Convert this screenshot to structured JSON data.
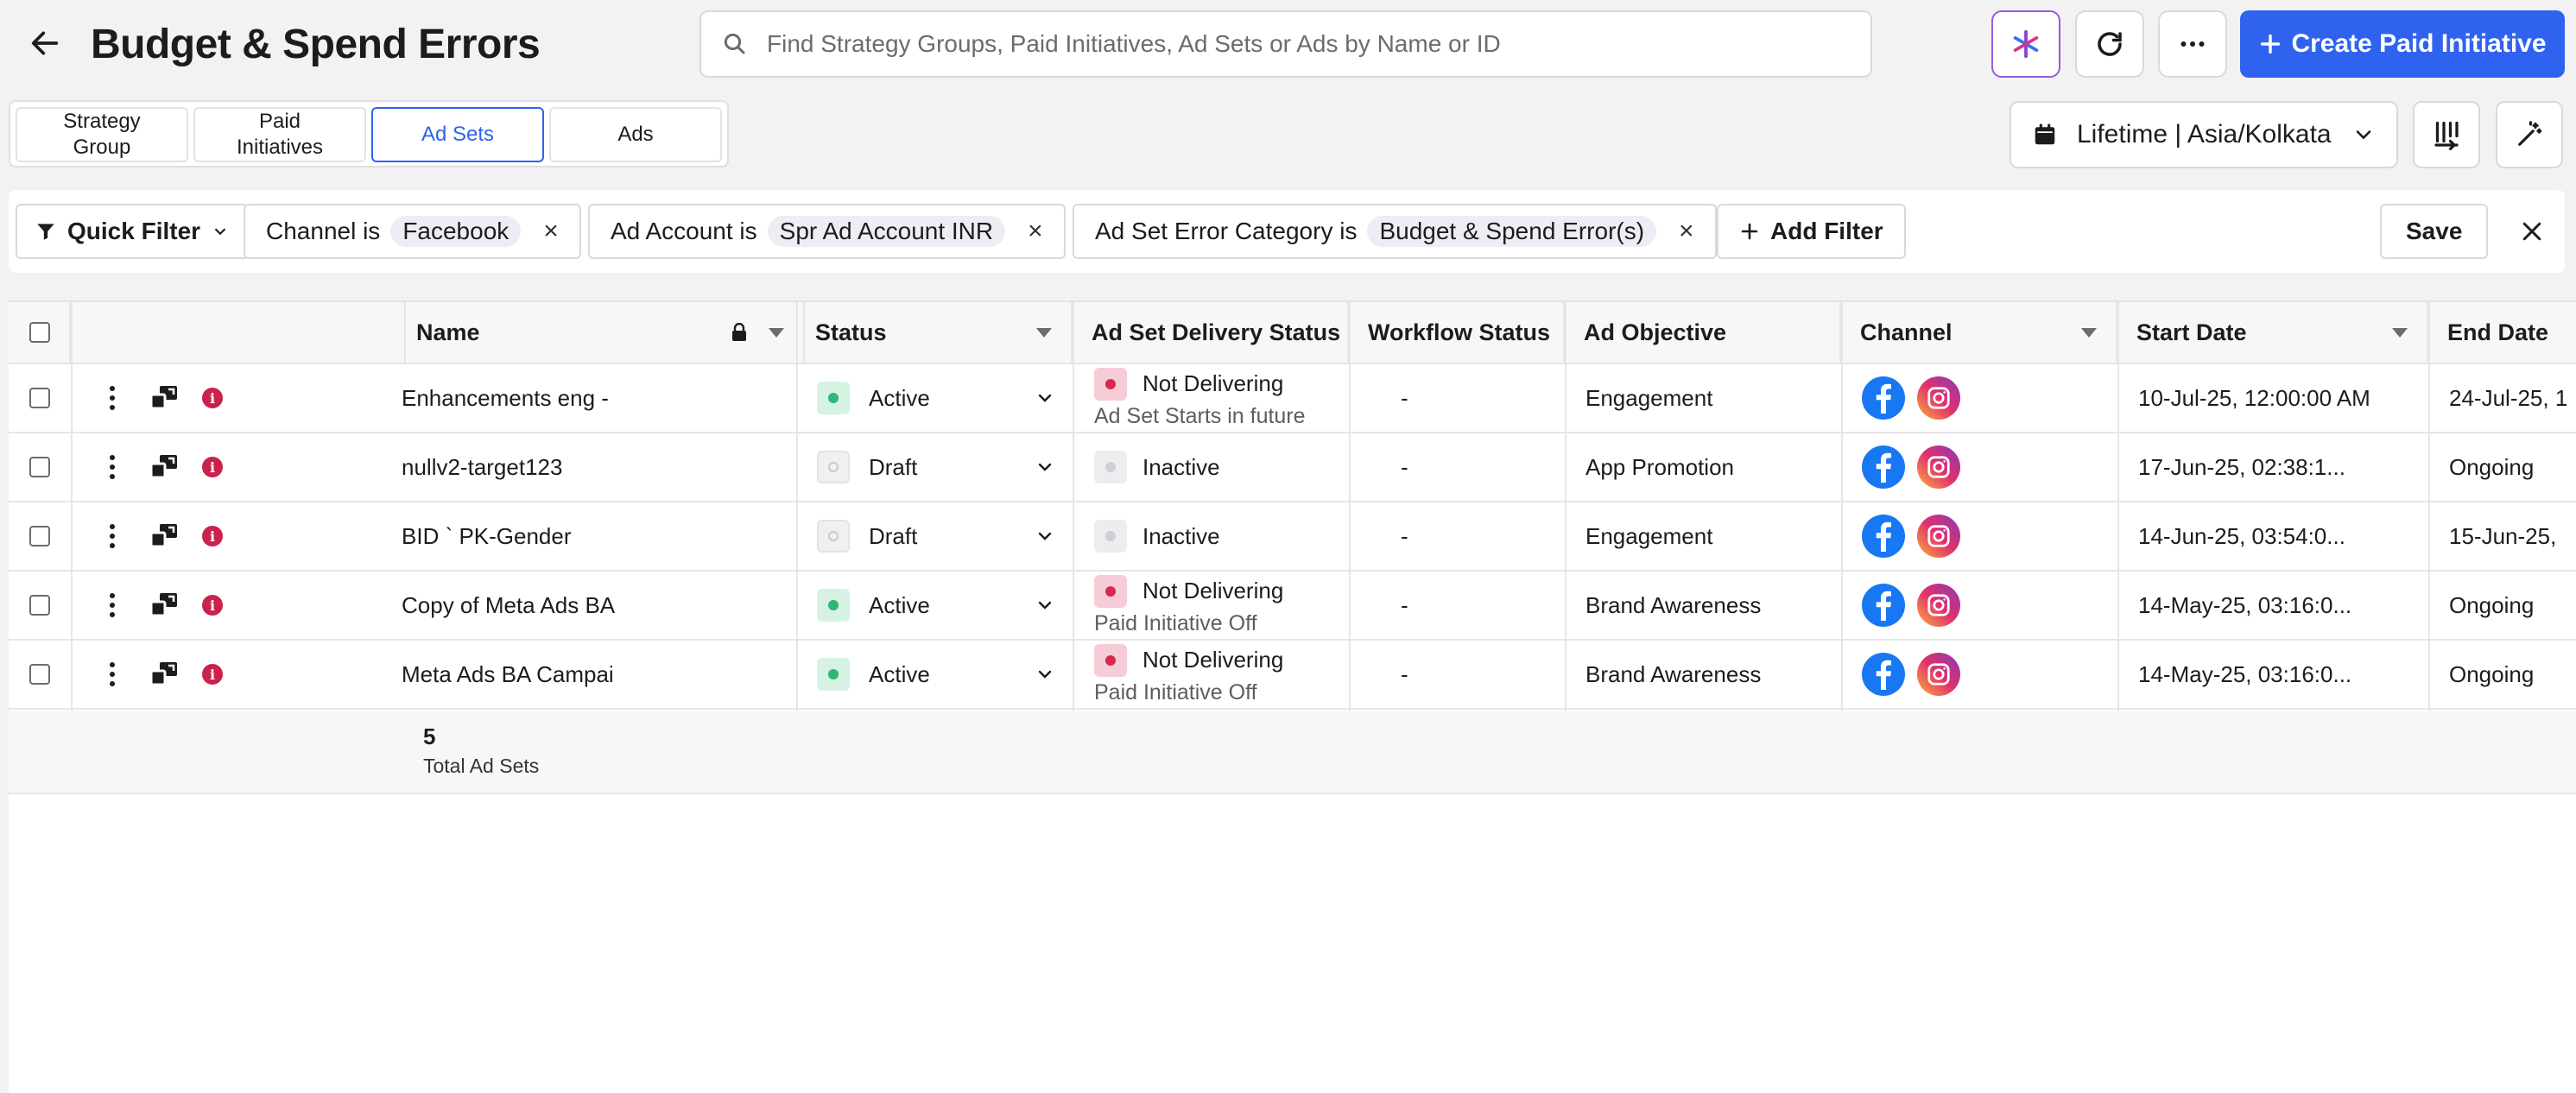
{
  "header": {
    "title": "Budget & Spend Errors",
    "search_placeholder": "Find Strategy Groups, Paid Initiatives, Ad Sets or Ads by Name or ID",
    "create_label": "Create Paid Initiative"
  },
  "tabs": [
    {
      "label": "Strategy\nGroup"
    },
    {
      "label": "Paid\nInitiatives"
    },
    {
      "label": "Ad Sets"
    },
    {
      "label": "Ads"
    }
  ],
  "date_range": "Lifetime | Asia/Kolkata",
  "filters": {
    "quick_filter": "Quick Filter",
    "chips": [
      {
        "field": "Channel is",
        "value": "Facebook"
      },
      {
        "field": "Ad Account is",
        "value": "Spr Ad Account INR"
      },
      {
        "field": "Ad Set Error Category is",
        "value": "Budget & Spend Error(s)"
      }
    ],
    "add_filter": "Add Filter",
    "save": "Save"
  },
  "table": {
    "columns": [
      "Name",
      "Status",
      "Ad Set Delivery Status",
      "Workflow Status",
      "Ad Objective",
      "Channel",
      "Start Date",
      "End Date"
    ],
    "rows": [
      {
        "name": "Enhancements eng -",
        "status": "Active",
        "delivery": "Not Delivering",
        "delivery_sub": "Ad Set Starts in future",
        "workflow": "-",
        "objective": "Engagement",
        "start": "10-Jul-25, 12:00:00 AM",
        "end": "24-Jul-25, 1"
      },
      {
        "name": "nullv2-target123",
        "status": "Draft",
        "delivery": "Inactive",
        "delivery_sub": "",
        "workflow": "-",
        "objective": "App Promotion",
        "start": "17-Jun-25, 02:38:1...",
        "end": "Ongoing"
      },
      {
        "name": "BID `     PK-Gender",
        "status": "Draft",
        "delivery": "Inactive",
        "delivery_sub": "",
        "workflow": "-",
        "objective": "Engagement",
        "start": "14-Jun-25, 03:54:0...",
        "end": "15-Jun-25,"
      },
      {
        "name": "Copy of Meta Ads BA",
        "status": "Active",
        "delivery": "Not Delivering",
        "delivery_sub": "Paid Initiative Off",
        "workflow": "-",
        "objective": "Brand Awareness",
        "start": "14-May-25, 03:16:0...",
        "end": "Ongoing"
      },
      {
        "name": "Meta Ads BA Campai",
        "status": "Active",
        "delivery": "Not Delivering",
        "delivery_sub": "Paid Initiative Off",
        "workflow": "-",
        "objective": "Brand Awareness",
        "start": "14-May-25, 03:16:0...",
        "end": "Ongoing"
      }
    ],
    "footer_count": "5",
    "footer_label": "Total Ad Sets"
  },
  "icons": {
    "back": "arrow-left-icon",
    "search": "search-icon",
    "ai": "sparkle-icon",
    "refresh": "refresh-icon",
    "more": "more-horizontal-icon",
    "calendar": "calendar-icon",
    "columns": "columns-icon",
    "magic": "magic-wand-icon",
    "lock": "lock-icon"
  },
  "colors": {
    "accent": "#2f63ef",
    "error": "#c8224d",
    "active": "#2fb574"
  }
}
